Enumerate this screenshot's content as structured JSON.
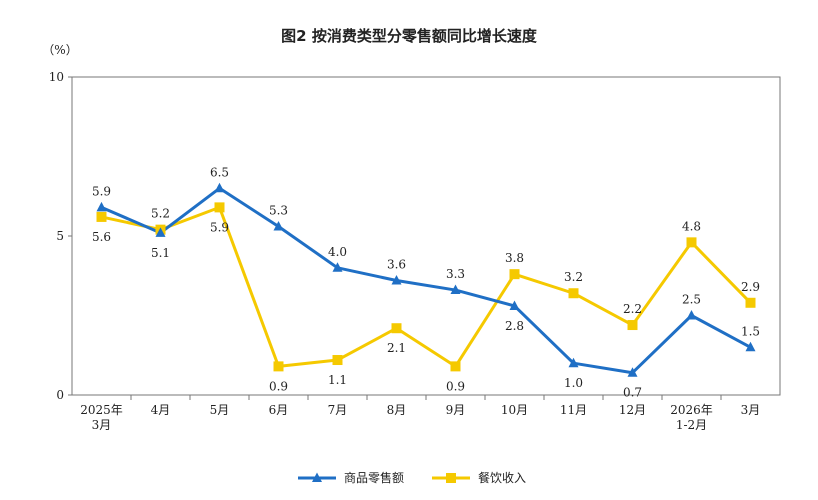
{
  "chart_data": {
    "type": "line",
    "title": "图2 按消费类型分零售额同比增长速度",
    "ylabel": "（%）",
    "ylim": [
      0,
      10
    ],
    "yticks": [
      "0",
      "5",
      "10"
    ],
    "categories": [
      [
        "2025年",
        "3月"
      ],
      [
        "4月"
      ],
      [
        "5月"
      ],
      [
        "6月"
      ],
      [
        "7月"
      ],
      [
        "8月"
      ],
      [
        "9月"
      ],
      [
        "10月"
      ],
      [
        "11月"
      ],
      [
        "12月"
      ],
      [
        "2026年",
        "1-2月"
      ],
      [
        "3月"
      ]
    ],
    "series": [
      {
        "name": "商品零售额",
        "color": "#1f6fc5",
        "marker": "triangle",
        "values": [
          5.9,
          5.1,
          6.5,
          5.3,
          4.0,
          3.6,
          3.3,
          2.8,
          1.0,
          0.7,
          2.5,
          1.5
        ],
        "labels": [
          "5.9",
          "5.1",
          "6.5",
          "5.3",
          "4.0",
          "3.6",
          "3.3",
          "2.8",
          "1.0",
          "0.7",
          "2.5",
          "1.5"
        ]
      },
      {
        "name": "餐饮收入",
        "color": "#f5c900",
        "marker": "square",
        "values": [
          5.6,
          5.2,
          5.9,
          0.9,
          1.1,
          2.1,
          0.9,
          3.8,
          3.2,
          2.2,
          4.8,
          2.9
        ],
        "labels": [
          "5.6",
          "5.2",
          "5.9",
          "0.9",
          "1.1",
          "2.1",
          "0.9",
          "3.8",
          "3.2",
          "2.2",
          "4.8",
          "2.9"
        ]
      }
    ],
    "grid": false,
    "legend_position": "bottom-center"
  }
}
